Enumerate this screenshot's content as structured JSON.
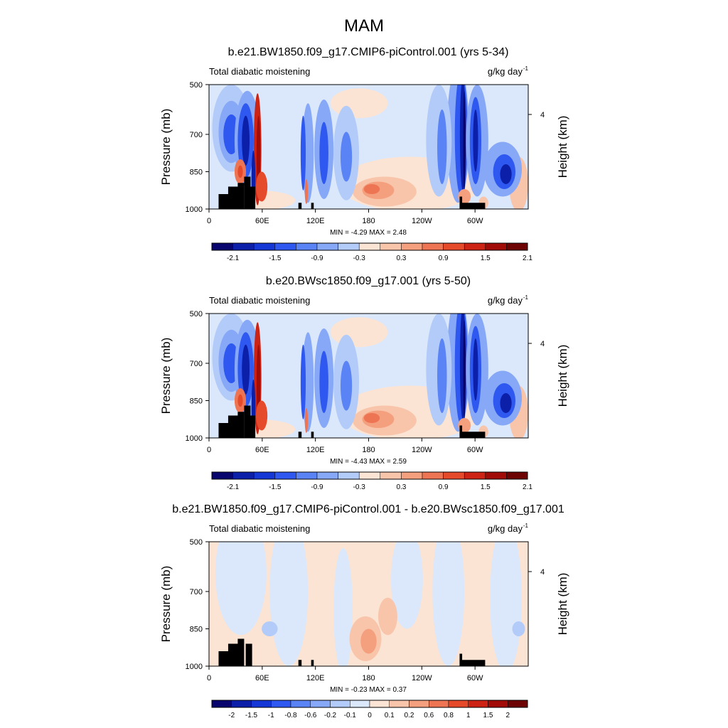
{
  "figure": {
    "title": "MAM"
  },
  "chart_data": [
    {
      "type": "heatmap",
      "title": "b.e21.BW1850.f09_g17.CMIP6-piControl.001 (yrs 5-34)",
      "variable": "Total diabatic moistening",
      "units": "g/kg day",
      "units_exp": "-1",
      "ylabel": "Pressure (mb)",
      "ylabel_right": "Height (km)",
      "x_ticks": [
        "0",
        "60E",
        "120E",
        "180",
        "120W",
        "60W"
      ],
      "y_ticks": [
        "500",
        "700",
        "850",
        "1000"
      ],
      "right_ticks": [
        "4"
      ],
      "stats": "MIN =  -4.29  MAX =   2.48",
      "colorbar_labels": [
        "-2.1",
        "-1.5",
        "-0.9",
        "-0.3",
        "0.3",
        "0.9",
        "1.5",
        "2.1"
      ],
      "colorbar_levels": 15,
      "ylim": [
        1000,
        500
      ],
      "xlim": [
        0,
        360
      ]
    },
    {
      "type": "heatmap",
      "title": "b.e20.BWsc1850.f09_g17.001 (yrs 5-50)",
      "variable": "Total diabatic moistening",
      "units": "g/kg day",
      "units_exp": "-1",
      "ylabel": "Pressure (mb)",
      "ylabel_right": "Height (km)",
      "x_ticks": [
        "0",
        "60E",
        "120E",
        "180",
        "120W",
        "60W"
      ],
      "y_ticks": [
        "500",
        "700",
        "850",
        "1000"
      ],
      "right_ticks": [
        "4"
      ],
      "stats": "MIN =  -4.43  MAX =   2.59",
      "colorbar_labels": [
        "-2.1",
        "-1.5",
        "-0.9",
        "-0.3",
        "0.3",
        "0.9",
        "1.5",
        "2.1"
      ],
      "colorbar_levels": 15,
      "ylim": [
        1000,
        500
      ],
      "xlim": [
        0,
        360
      ]
    },
    {
      "type": "heatmap",
      "title": "b.e21.BW1850.f09_g17.CMIP6-piControl.001 - b.e20.BWsc1850.f09_g17.001",
      "variable": "Total diabatic moistening",
      "units": "g/kg day",
      "units_exp": "-1",
      "ylabel": "Pressure (mb)",
      "ylabel_right": "Height (km)",
      "x_ticks": [
        "0",
        "60E",
        "120E",
        "180",
        "120W",
        "60W"
      ],
      "y_ticks": [
        "500",
        "700",
        "850",
        "1000"
      ],
      "right_ticks": [
        "4"
      ],
      "stats": "MIN =  -0.23  MAX =   0.37",
      "colorbar_labels": [
        "-2",
        "-1.5",
        "-1",
        "-0.8",
        "-0.6",
        "-0.2",
        "-0.1",
        "0",
        "0.1",
        "0.2",
        "0.6",
        "0.8",
        "1",
        "1.5",
        "2"
      ],
      "colorbar_levels": 16,
      "ylim": [
        1000,
        500
      ],
      "xlim": [
        0,
        360
      ]
    }
  ],
  "colors": {
    "scale": [
      "#08066e",
      "#0b1fa8",
      "#1437d6",
      "#2e58f0",
      "#5a83f5",
      "#86a8f7",
      "#b3cbf9",
      "#dbe8fb",
      "#fbe4d3",
      "#f8c5ab",
      "#f4a07e",
      "#ee7553",
      "#e54a2b",
      "#cc2314",
      "#a10c08",
      "#6e0303"
    ],
    "terrain": "#000000"
  }
}
